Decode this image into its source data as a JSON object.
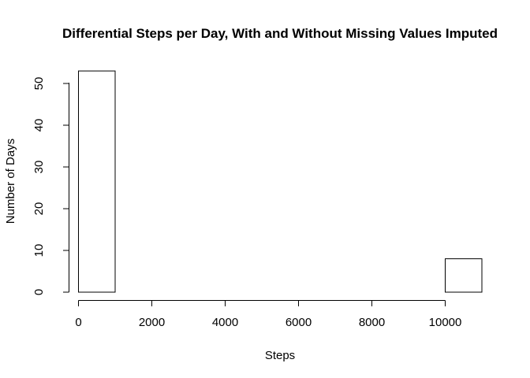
{
  "chart_data": {
    "type": "bar",
    "subtype": "histogram",
    "title": "Differential Steps per Day, With and Without Missing Values Imputed",
    "xlabel": "Steps",
    "ylabel": "Number of Days",
    "bins": [
      {
        "start": 0,
        "end": 1000,
        "count": 53
      },
      {
        "start": 1000,
        "end": 2000,
        "count": 0
      },
      {
        "start": 2000,
        "end": 3000,
        "count": 0
      },
      {
        "start": 3000,
        "end": 4000,
        "count": 0
      },
      {
        "start": 4000,
        "end": 5000,
        "count": 0
      },
      {
        "start": 5000,
        "end": 6000,
        "count": 0
      },
      {
        "start": 6000,
        "end": 7000,
        "count": 0
      },
      {
        "start": 7000,
        "end": 8000,
        "count": 0
      },
      {
        "start": 8000,
        "end": 9000,
        "count": 0
      },
      {
        "start": 9000,
        "end": 10000,
        "count": 0
      },
      {
        "start": 10000,
        "end": 11000,
        "count": 8
      }
    ],
    "xlim": [
      0,
      11000
    ],
    "ylim": [
      0,
      53
    ],
    "x_ticks": [
      "0",
      "2000",
      "4000",
      "6000",
      "8000",
      "10000"
    ],
    "y_ticks": [
      "0",
      "10",
      "20",
      "30",
      "40",
      "50"
    ],
    "bar_fill": "#ffffff",
    "bar_stroke": "#000000",
    "grid": false,
    "legend": "none"
  }
}
